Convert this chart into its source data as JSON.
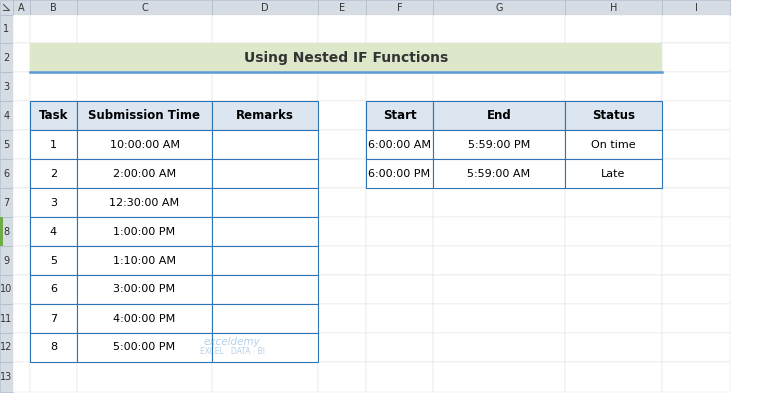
{
  "title": "Using Nested IF Functions",
  "title_bg": "#dde8cb",
  "title_border": "#5b9bd5",
  "header_bg": "#dce6f1",
  "header_border": "#2e74b5",
  "cell_bg": "#ffffff",
  "col_header_bg": "#d6dce4",
  "col_header_border": "#adb9ca",
  "left_table_headers": [
    "Task",
    "Submission Time",
    "Remarks"
  ],
  "left_table_data": [
    [
      "1",
      "10:00:00 AM",
      ""
    ],
    [
      "2",
      "2:00:00 AM",
      ""
    ],
    [
      "3",
      "12:30:00 AM",
      ""
    ],
    [
      "4",
      "1:00:00 PM",
      ""
    ],
    [
      "5",
      "1:10:00 AM",
      ""
    ],
    [
      "6",
      "3:00:00 PM",
      ""
    ],
    [
      "7",
      "4:00:00 PM",
      ""
    ],
    [
      "8",
      "5:00:00 PM",
      ""
    ]
  ],
  "right_table_headers": [
    "Start",
    "End",
    "Status"
  ],
  "right_table_data": [
    [
      "6:00:00 AM",
      "5:59:00 PM",
      "On time"
    ],
    [
      "6:00:00 PM",
      "5:59:00 AM",
      "Late"
    ]
  ],
  "col_labels": [
    "A",
    "B",
    "C",
    "D",
    "E",
    "F",
    "G",
    "H",
    "I"
  ],
  "row_labels": [
    "1",
    "2",
    "3",
    "4",
    "5",
    "6",
    "7",
    "8",
    "9",
    "10",
    "11",
    "12",
    "13"
  ],
  "col_starts": [
    13,
    30,
    77,
    212,
    318,
    366,
    433,
    565,
    662,
    730
  ],
  "row_starts": [
    0,
    15,
    43,
    72,
    101,
    130,
    159,
    188,
    217,
    246,
    275,
    304,
    333,
    362,
    392
  ]
}
